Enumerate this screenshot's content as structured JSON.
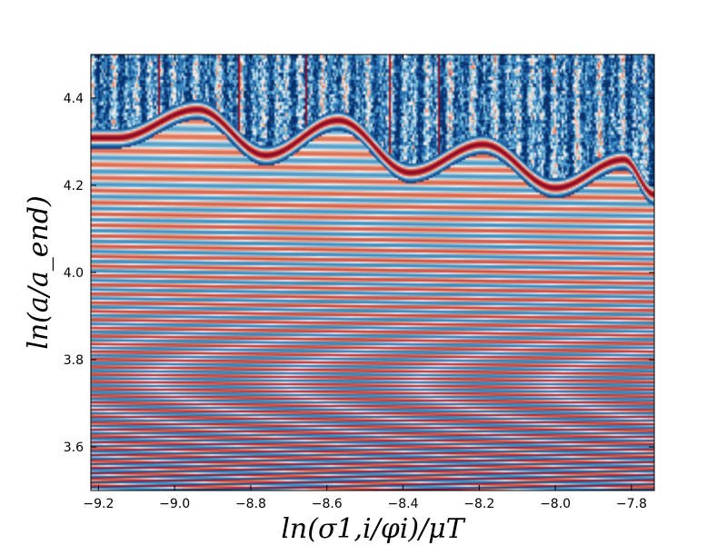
{
  "chart_data": {
    "type": "heatmap",
    "title": "",
    "xlabel": "ln(σ1,i/φi)/μT",
    "ylabel": "ln(a/a_end)",
    "xlim": [
      -9.22,
      -7.74
    ],
    "ylim": [
      3.5,
      4.5
    ],
    "x_ticks": [
      -9.2,
      -9.0,
      -8.8,
      -8.6,
      -8.4,
      -8.2,
      -8.0,
      -7.8
    ],
    "x_tick_labels": [
      "−9.2",
      "−9.0",
      "−8.8",
      "−8.6",
      "−8.4",
      "−8.2",
      "−8.0",
      "−7.8"
    ],
    "y_ticks": [
      3.6,
      3.8,
      4.0,
      4.2,
      4.4
    ],
    "y_tick_labels": [
      "3.6",
      "3.8",
      "4.0",
      "4.2",
      "4.4"
    ],
    "colormap": "RdBu_r",
    "colormap_stops": [
      "#08306b",
      "#2166ac",
      "#4393c3",
      "#92c5de",
      "#f7f7f7",
      "#f4a582",
      "#d6604d",
      "#b2182b",
      "#67001f"
    ],
    "grid": false,
    "band_boundary_peaks": [
      {
        "x": -8.94,
        "y": 4.385
      },
      {
        "x": -8.57,
        "y": 4.36
      },
      {
        "x": -8.19,
        "y": 4.305
      },
      {
        "x": -7.82,
        "y": 4.27
      }
    ],
    "band_boundary_troughs": [
      {
        "x": -9.15,
        "y": 4.32
      },
      {
        "x": -8.76,
        "y": 4.28
      },
      {
        "x": -8.38,
        "y": 4.24
      },
      {
        "x": -8.0,
        "y": 4.205
      },
      {
        "x": -7.74,
        "y": 4.19
      }
    ]
  }
}
